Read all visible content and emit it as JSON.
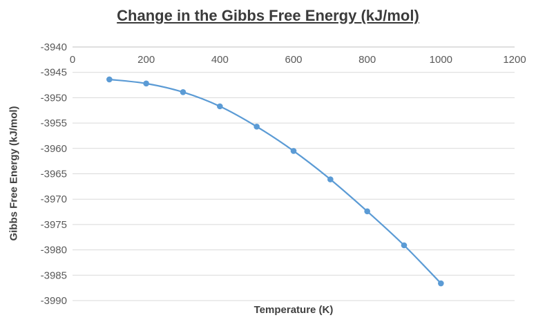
{
  "chart_data": {
    "type": "line",
    "title": "Change in the Gibbs Free Energy (kJ/mol)",
    "xlabel": "Temperature (K)",
    "ylabel": "Gibbs Free Energy (kJ/mol)",
    "x": [
      100,
      200,
      300,
      400,
      500,
      600,
      700,
      800,
      900,
      1000
    ],
    "values": [
      -3946.4,
      -3947.2,
      -3948.9,
      -3951.7,
      -3955.7,
      -3960.5,
      -3966.1,
      -3972.4,
      -3979.1,
      -3986.6
    ],
    "series_name": "Gibbs Free Energy",
    "xlim": [
      0,
      1200
    ],
    "ylim": [
      -3990,
      -3940
    ],
    "x_ticks": [
      0,
      200,
      400,
      600,
      800,
      1000,
      1200
    ],
    "y_ticks": [
      -3940,
      -3945,
      -3950,
      -3955,
      -3960,
      -3965,
      -3970,
      -3975,
      -3980,
      -3985,
      -3990
    ],
    "grid": true,
    "legend_position": "none",
    "marker": "circle",
    "line_color": "#5B9BD5",
    "grid_color": "#D9D9D9",
    "axis_line_color": "#BFBFBF",
    "tick_text_color": "#595959",
    "title_color": "#3b3b3b"
  }
}
